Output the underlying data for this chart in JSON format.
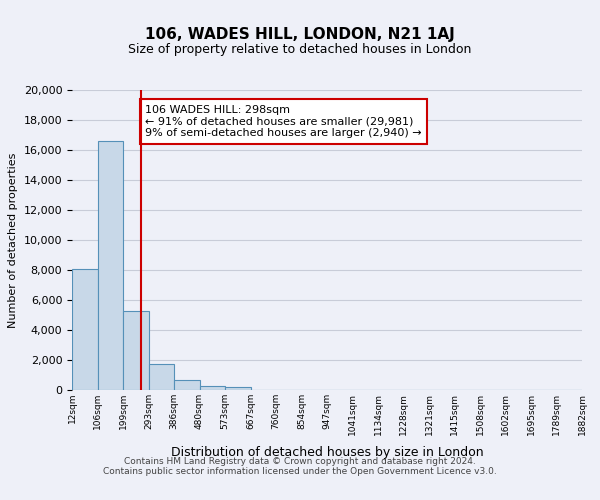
{
  "title": "106, WADES HILL, LONDON, N21 1AJ",
  "subtitle": "Size of property relative to detached houses in London",
  "xlabel": "Distribution of detached houses by size in London",
  "ylabel": "Number of detached properties",
  "bin_labels": [
    "12sqm",
    "106sqm",
    "199sqm",
    "293sqm",
    "386sqm",
    "480sqm",
    "573sqm",
    "667sqm",
    "760sqm",
    "854sqm",
    "947sqm",
    "1041sqm",
    "1134sqm",
    "1228sqm",
    "1321sqm",
    "1415sqm",
    "1508sqm",
    "1602sqm",
    "1695sqm",
    "1789sqm",
    "1882sqm"
  ],
  "bar_heights": [
    8100,
    16600,
    5300,
    1750,
    700,
    280,
    200,
    0,
    0,
    0,
    0,
    0,
    0,
    0,
    0,
    0,
    0,
    0,
    0,
    0
  ],
  "bar_color": "#c8d8e8",
  "bar_edge_color": "#5590b8",
  "ylim": [
    0,
    20000
  ],
  "yticks": [
    0,
    2000,
    4000,
    6000,
    8000,
    10000,
    12000,
    14000,
    16000,
    18000,
    20000
  ],
  "property_line_x": 2.72,
  "property_label": "106 WADES HILL: 298sqm",
  "annotation_line1": "← 91% of detached houses are smaller (29,981)",
  "annotation_line2": "9% of semi-detached houses are larger (2,940) →",
  "annotation_box_color": "#ffffff",
  "annotation_box_edge_color": "#cc0000",
  "vertical_line_color": "#cc0000",
  "grid_color": "#c8ccd8",
  "background_color": "#eef0f8",
  "footer_line1": "Contains HM Land Registry data © Crown copyright and database right 2024.",
  "footer_line2": "Contains public sector information licensed under the Open Government Licence v3.0."
}
